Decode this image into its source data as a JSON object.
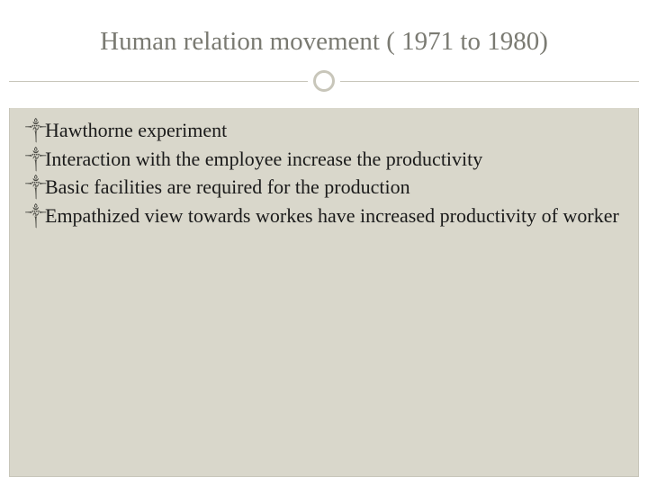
{
  "slide": {
    "title": "Human relation movement ( 1971 to 1980)",
    "title_color": "#7a7a72",
    "title_fontsize": 29,
    "background_color": "#ffffff",
    "inner_background": "#d9d7cb",
    "divider_color": "#c8c6ba",
    "circle_border_color": "#c8c6ba",
    "bullet_glyph": "༒",
    "body_text_color": "#1a1a1a",
    "body_fontsize": 22,
    "bullets": [
      "Hawthorne experiment",
      "Interaction with the employee increase the productivity",
      "Basic  facilities are required for the production",
      "Empathized view  towards workes have increased productivity of worker"
    ]
  }
}
